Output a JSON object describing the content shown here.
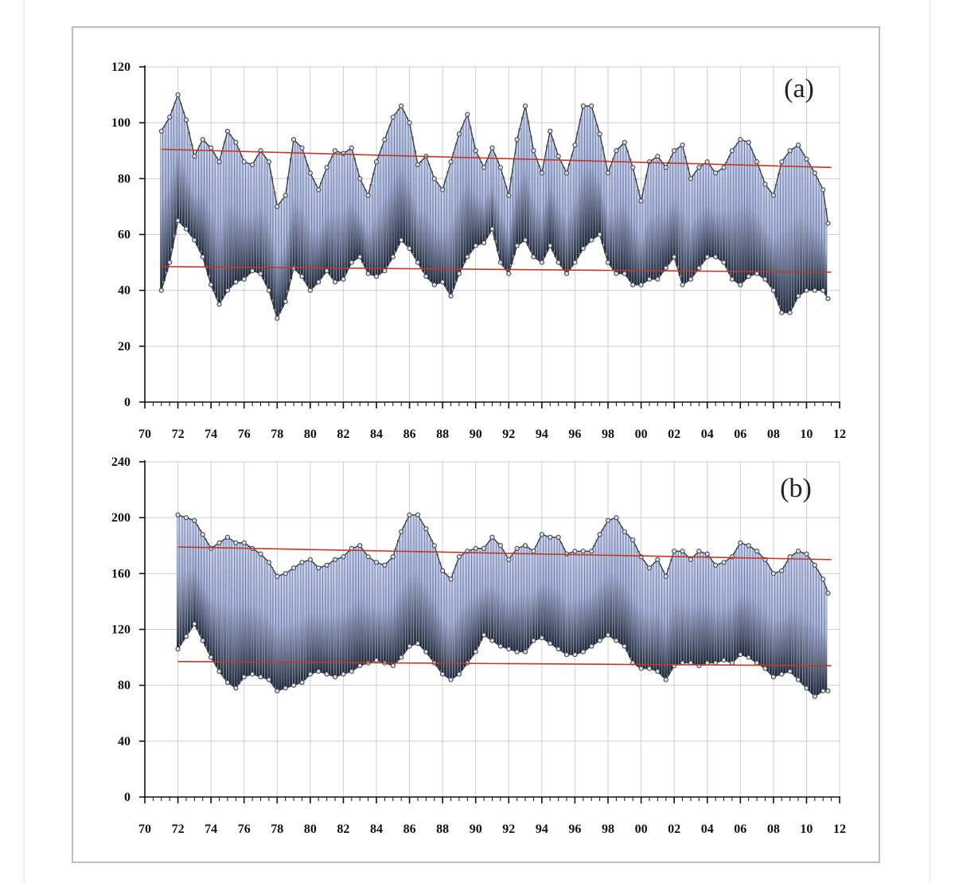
{
  "chart_data": [
    {
      "type": "bar",
      "panel_label": "(a)",
      "title": "",
      "xlabel": "",
      "ylabel": "",
      "xlim": [
        1970,
        2012
      ],
      "ylim": [
        0,
        120
      ],
      "y_ticks": [
        "0",
        "20",
        "40",
        "60",
        "80",
        "100",
        "120"
      ],
      "x_ticks": [
        "70",
        "72",
        "74",
        "76",
        "78",
        "80",
        "82",
        "84",
        "86",
        "88",
        "90",
        "92",
        "94",
        "96",
        "98",
        "00",
        "02",
        "04",
        "06",
        "08",
        "10",
        "12"
      ],
      "grid": true,
      "series": [
        {
          "name": "upper",
          "x": [
            1971.0,
            1971.5,
            1972.0,
            1972.5,
            1973.0,
            1973.5,
            1974.0,
            1974.5,
            1975.0,
            1975.5,
            1976.0,
            1976.5,
            1977.0,
            1977.5,
            1978.0,
            1978.5,
            1979.0,
            1979.5,
            1980.0,
            1980.5,
            1981.0,
            1981.5,
            1982.0,
            1982.5,
            1983.0,
            1983.5,
            1984.0,
            1984.5,
            1985.0,
            1985.5,
            1986.0,
            1986.5,
            1987.0,
            1987.5,
            1988.0,
            1988.5,
            1989.0,
            1989.5,
            1990.0,
            1990.5,
            1991.0,
            1991.5,
            1992.0,
            1992.5,
            1993.0,
            1993.5,
            1994.0,
            1994.5,
            1995.0,
            1995.5,
            1996.0,
            1996.5,
            1997.0,
            1997.5,
            1998.0,
            1998.5,
            1999.0,
            1999.5,
            2000.0,
            2000.5,
            2001.0,
            2001.5,
            2002.0,
            2002.5,
            2003.0,
            2003.5,
            2004.0,
            2004.5,
            2005.0,
            2005.5,
            2006.0,
            2006.5,
            2007.0,
            2007.5,
            2008.0,
            2008.5,
            2009.0,
            2009.5,
            2010.0,
            2010.5,
            2011.0,
            2011.3
          ],
          "values": [
            97,
            102,
            110,
            101,
            88,
            94,
            91,
            86,
            97,
            93,
            86,
            85,
            90,
            86,
            70,
            74,
            94,
            91,
            82,
            76,
            84,
            90,
            89,
            91,
            80,
            74,
            86,
            94,
            102,
            106,
            100,
            85,
            88,
            80,
            76,
            86,
            96,
            103,
            90,
            84,
            91,
            84,
            74,
            94,
            106,
            90,
            82,
            97,
            88,
            82,
            92,
            106,
            106,
            96,
            82,
            90,
            93,
            84,
            72,
            86,
            88,
            84,
            90,
            92,
            80,
            84,
            86,
            82,
            84,
            90,
            94,
            93,
            86,
            78,
            74,
            86,
            90,
            92,
            87,
            82,
            76,
            64
          ]
        },
        {
          "name": "lower",
          "x": [
            1971.0,
            1971.5,
            1972.0,
            1972.5,
            1973.0,
            1973.5,
            1974.0,
            1974.5,
            1975.0,
            1975.5,
            1976.0,
            1976.5,
            1977.0,
            1977.5,
            1978.0,
            1978.5,
            1979.0,
            1979.5,
            1980.0,
            1980.5,
            1981.0,
            1981.5,
            1982.0,
            1982.5,
            1983.0,
            1983.5,
            1984.0,
            1984.5,
            1985.0,
            1985.5,
            1986.0,
            1986.5,
            1987.0,
            1987.5,
            1988.0,
            1988.5,
            1989.0,
            1989.5,
            1990.0,
            1990.5,
            1991.0,
            1991.5,
            1992.0,
            1992.5,
            1993.0,
            1993.5,
            1994.0,
            1994.5,
            1995.0,
            1995.5,
            1996.0,
            1996.5,
            1997.0,
            1997.5,
            1998.0,
            1998.5,
            1999.0,
            1999.5,
            2000.0,
            2000.5,
            2001.0,
            2001.5,
            2002.0,
            2002.5,
            2003.0,
            2003.5,
            2004.0,
            2004.5,
            2005.0,
            2005.5,
            2006.0,
            2006.5,
            2007.0,
            2007.5,
            2008.0,
            2008.5,
            2009.0,
            2009.5,
            2010.0,
            2010.5,
            2011.0,
            2011.3
          ],
          "values": [
            40,
            50,
            65,
            62,
            58,
            52,
            42,
            35,
            40,
            43,
            44,
            47,
            46,
            40,
            30,
            36,
            48,
            45,
            40,
            43,
            47,
            43,
            44,
            50,
            52,
            46,
            45,
            47,
            52,
            58,
            55,
            50,
            45,
            42,
            43,
            38,
            46,
            52,
            56,
            57,
            62,
            50,
            46,
            56,
            58,
            52,
            50,
            56,
            50,
            46,
            50,
            55,
            58,
            60,
            50,
            46,
            46,
            42,
            42,
            44,
            44,
            48,
            52,
            42,
            44,
            48,
            52,
            52,
            50,
            44,
            42,
            45,
            46,
            44,
            40,
            32,
            32,
            38,
            40,
            40,
            40,
            37
          ]
        }
      ],
      "trend_lines": [
        {
          "name": "upper-trend",
          "x": [
            1971.0,
            2011.5
          ],
          "y": [
            90.5,
            84.0
          ]
        },
        {
          "name": "lower-trend",
          "x": [
            1971.0,
            2011.5
          ],
          "y": [
            48.5,
            46.5
          ]
        }
      ]
    },
    {
      "type": "bar",
      "panel_label": "(b)",
      "title": "",
      "xlabel": "",
      "ylabel": "",
      "xlim": [
        1970,
        2012
      ],
      "ylim": [
        0,
        240
      ],
      "y_ticks": [
        "0",
        "40",
        "80",
        "120",
        "160",
        "200",
        "240"
      ],
      "x_ticks": [
        "70",
        "72",
        "74",
        "76",
        "78",
        "80",
        "82",
        "84",
        "86",
        "88",
        "90",
        "92",
        "94",
        "96",
        "98",
        "00",
        "02",
        "04",
        "06",
        "08",
        "10",
        "12"
      ],
      "grid": true,
      "series": [
        {
          "name": "upper",
          "x": [
            1972.0,
            1972.5,
            1973.0,
            1973.5,
            1974.0,
            1974.5,
            1975.0,
            1975.5,
            1976.0,
            1976.5,
            1977.0,
            1977.5,
            1978.0,
            1978.5,
            1979.0,
            1979.5,
            1980.0,
            1980.5,
            1981.0,
            1981.5,
            1982.0,
            1982.5,
            1983.0,
            1983.5,
            1984.0,
            1984.5,
            1985.0,
            1985.5,
            1986.0,
            1986.5,
            1987.0,
            1987.5,
            1988.0,
            1988.5,
            1989.0,
            1989.5,
            1990.0,
            1990.5,
            1991.0,
            1991.5,
            1992.0,
            1992.5,
            1993.0,
            1993.5,
            1994.0,
            1994.5,
            1995.0,
            1995.5,
            1996.0,
            1996.5,
            1997.0,
            1997.5,
            1998.0,
            1998.5,
            1999.0,
            1999.5,
            2000.0,
            2000.5,
            2001.0,
            2001.5,
            2002.0,
            2002.5,
            2003.0,
            2003.5,
            2004.0,
            2004.5,
            2005.0,
            2005.5,
            2006.0,
            2006.5,
            2007.0,
            2007.5,
            2008.0,
            2008.5,
            2009.0,
            2009.5,
            2010.0,
            2010.5,
            2011.0,
            2011.3
          ],
          "values": [
            202,
            200,
            198,
            188,
            178,
            182,
            186,
            182,
            182,
            178,
            174,
            168,
            158,
            160,
            164,
            168,
            170,
            164,
            166,
            170,
            172,
            178,
            180,
            172,
            168,
            166,
            172,
            190,
            202,
            202,
            192,
            180,
            162,
            156,
            172,
            176,
            178,
            178,
            186,
            180,
            170,
            178,
            180,
            176,
            188,
            186,
            186,
            174,
            176,
            176,
            176,
            188,
            198,
            200,
            190,
            184,
            172,
            164,
            170,
            158,
            176,
            176,
            170,
            176,
            174,
            166,
            168,
            172,
            182,
            180,
            176,
            170,
            160,
            162,
            172,
            176,
            174,
            166,
            156,
            146
          ]
        },
        {
          "name": "lower",
          "x": [
            1972.0,
            1972.5,
            1973.0,
            1973.5,
            1974.0,
            1974.5,
            1975.0,
            1975.5,
            1976.0,
            1976.5,
            1977.0,
            1977.5,
            1978.0,
            1978.5,
            1979.0,
            1979.5,
            1980.0,
            1980.5,
            1981.0,
            1981.5,
            1982.0,
            1982.5,
            1983.0,
            1983.5,
            1984.0,
            1984.5,
            1985.0,
            1985.5,
            1986.0,
            1986.5,
            1987.0,
            1987.5,
            1988.0,
            1988.5,
            1989.0,
            1989.5,
            1990.0,
            1990.5,
            1991.0,
            1991.5,
            1992.0,
            1992.5,
            1993.0,
            1993.5,
            1994.0,
            1994.5,
            1995.0,
            1995.5,
            1996.0,
            1996.5,
            1997.0,
            1997.5,
            1998.0,
            1998.5,
            1999.0,
            1999.5,
            2000.0,
            2000.5,
            2001.0,
            2001.5,
            2002.0,
            2002.5,
            2003.0,
            2003.5,
            2004.0,
            2004.5,
            2005.0,
            2005.5,
            2006.0,
            2006.5,
            2007.0,
            2007.5,
            2008.0,
            2008.5,
            2009.0,
            2009.5,
            2010.0,
            2010.5,
            2011.0,
            2011.3
          ],
          "values": [
            106,
            115,
            124,
            112,
            100,
            90,
            82,
            78,
            86,
            88,
            86,
            84,
            76,
            78,
            80,
            82,
            88,
            90,
            88,
            86,
            88,
            90,
            94,
            96,
            98,
            96,
            94,
            100,
            108,
            110,
            104,
            96,
            88,
            84,
            88,
            96,
            104,
            116,
            112,
            108,
            106,
            104,
            104,
            112,
            114,
            110,
            106,
            102,
            102,
            104,
            108,
            112,
            116,
            112,
            108,
            96,
            92,
            92,
            90,
            84,
            94,
            96,
            96,
            94,
            96,
            96,
            98,
            96,
            102,
            100,
            96,
            92,
            86,
            88,
            90,
            84,
            78,
            72,
            76,
            76
          ]
        }
      ],
      "trend_lines": [
        {
          "name": "upper-trend",
          "x": [
            1972.0,
            2011.5
          ],
          "y": [
            179.0,
            170.0
          ]
        },
        {
          "name": "lower-trend",
          "x": [
            1972.0,
            2011.5
          ],
          "y": [
            97.0,
            94.0
          ]
        }
      ]
    }
  ]
}
